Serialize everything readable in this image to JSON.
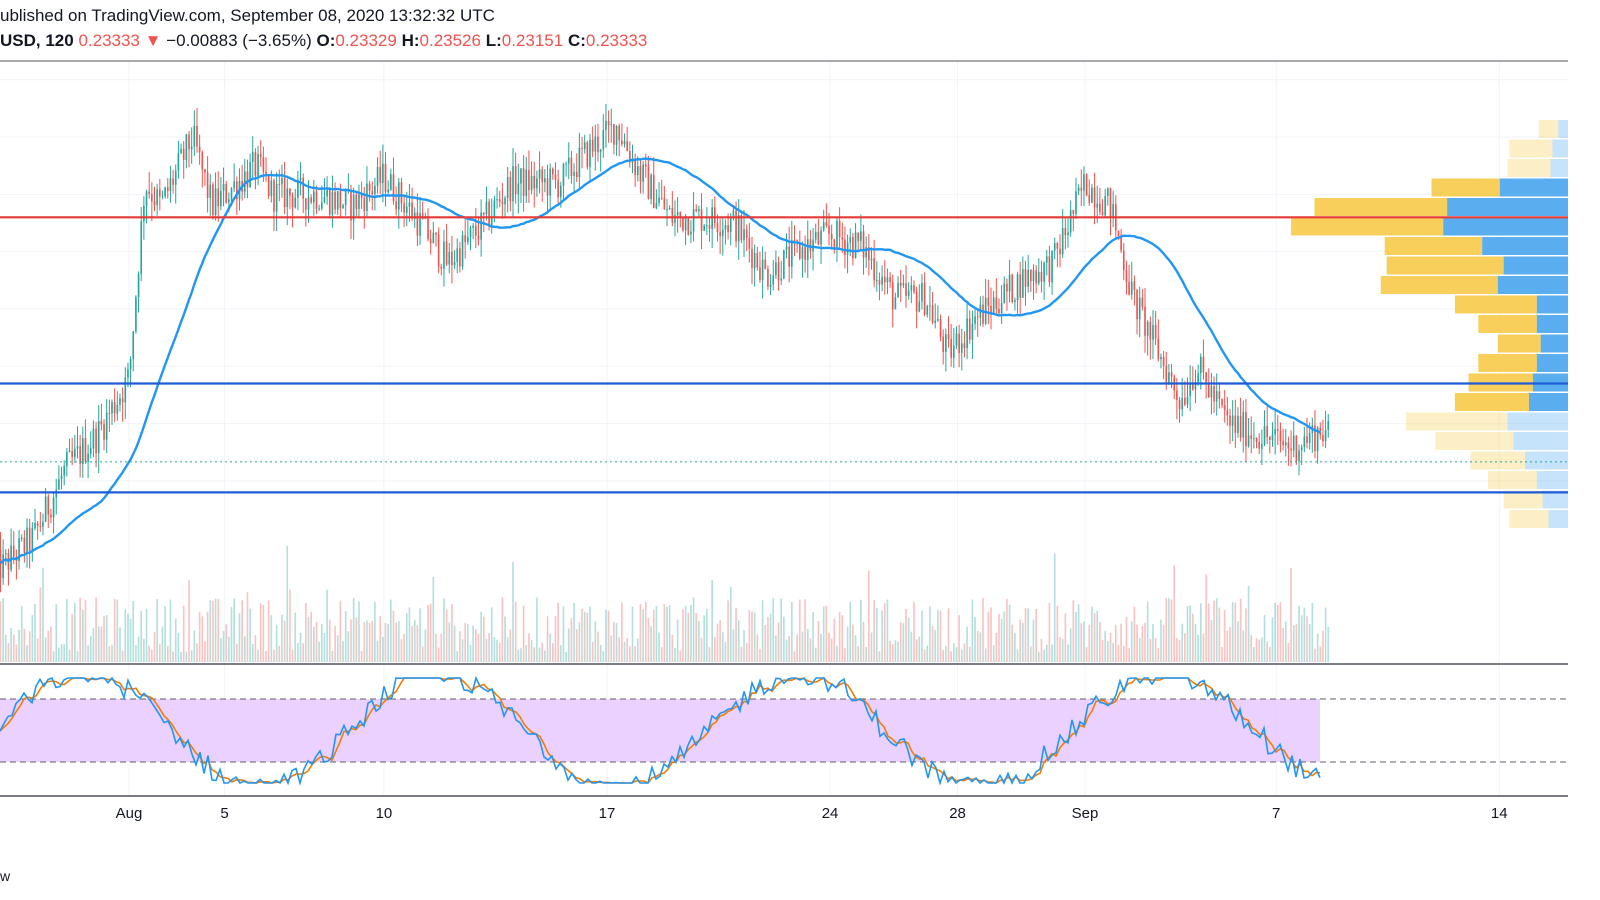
{
  "header": {
    "published": "ublished on TradingView.com, September 08, 2020 13:32:32 UTC",
    "symbol": "USD, 120",
    "last": "0.23333",
    "change_arrow": "▼",
    "change": "−0.00883 (−3.65%)",
    "o_label": "O:",
    "o_value": "0.23329",
    "h_label": "H:",
    "h_value": "0.23526",
    "l_label": "L:",
    "l_value": "0.23151",
    "c_label": "C:",
    "c_value": "0.23333"
  },
  "footer": {
    "mark": "w"
  },
  "colors": {
    "up": "#26a69a",
    "down": "#ef5350",
    "ma": "#2196f3",
    "resistance": "#e53935",
    "support": "#1e5bd6",
    "vp_up": "#5aaef0",
    "vp_down": "#f7cf5a",
    "stoch_k": "#2196f3",
    "stoch_d": "#f57c00",
    "stoch_band": "#e7c9ff"
  },
  "chart_data": {
    "type": "candlestick",
    "interval": "120",
    "last_price": 0.23333,
    "x_ticks": [
      {
        "label": "Aug",
        "day": 2
      },
      {
        "label": "5",
        "day": 5
      },
      {
        "label": "10",
        "day": 10
      },
      {
        "label": "17",
        "day": 17
      },
      {
        "label": "24",
        "day": 24
      },
      {
        "label": "28",
        "day": 28
      },
      {
        "label": "Sep",
        "day": 32
      },
      {
        "label": "7",
        "day": 38
      },
      {
        "label": "14",
        "day": 45
      }
    ],
    "price_close_keypoints": [
      [
        -2,
        0.215
      ],
      [
        -1,
        0.22
      ],
      [
        0,
        0.232
      ],
      [
        1,
        0.238
      ],
      [
        2,
        0.248
      ],
      [
        2.5,
        0.282
      ],
      [
        3,
        0.278
      ],
      [
        4,
        0.29
      ],
      [
        4.6,
        0.278
      ],
      [
        6,
        0.285
      ],
      [
        6.5,
        0.28
      ],
      [
        8,
        0.28
      ],
      [
        9,
        0.278
      ],
      [
        10,
        0.283
      ],
      [
        11,
        0.276
      ],
      [
        12,
        0.268
      ],
      [
        13,
        0.274
      ],
      [
        14,
        0.282
      ],
      [
        15.5,
        0.282
      ],
      [
        16.5,
        0.288
      ],
      [
        17.3,
        0.292
      ],
      [
        18,
        0.284
      ],
      [
        19,
        0.276
      ],
      [
        20,
        0.276
      ],
      [
        21,
        0.275
      ],
      [
        22,
        0.266
      ],
      [
        23,
        0.27
      ],
      [
        24,
        0.273
      ],
      [
        25,
        0.271
      ],
      [
        26,
        0.262
      ],
      [
        27,
        0.262
      ],
      [
        27.7,
        0.252
      ],
      [
        28.5,
        0.258
      ],
      [
        30,
        0.265
      ],
      [
        31,
        0.268
      ],
      [
        32,
        0.282
      ],
      [
        32.8,
        0.278
      ],
      [
        33.5,
        0.262
      ],
      [
        34,
        0.256
      ],
      [
        35,
        0.244
      ],
      [
        35.5,
        0.25
      ],
      [
        36.5,
        0.24
      ],
      [
        37.5,
        0.238
      ],
      [
        38.5,
        0.236
      ],
      [
        39.5,
        0.239
      ],
      [
        40.1,
        0.2333
      ]
    ],
    "resistance_level": 0.276,
    "support_levels": [
      0.247,
      0.228
    ],
    "volume_profile": {
      "price_buckets_top_to_bottom": 21,
      "up_volume": [
        0.05,
        0.08,
        0.09,
        0.35,
        0.62,
        0.64,
        0.44,
        0.33,
        0.36,
        0.16,
        0.16,
        0.14,
        0.16,
        0.18,
        0.2,
        0.31,
        0.28,
        0.22,
        0.16,
        0.13,
        0.1
      ],
      "down_volume": [
        0.1,
        0.22,
        0.22,
        0.35,
        0.68,
        0.78,
        0.5,
        0.6,
        0.6,
        0.42,
        0.3,
        0.22,
        0.3,
        0.33,
        0.38,
        0.52,
        0.4,
        0.28,
        0.25,
        0.2,
        0.2
      ]
    },
    "stochastic": {
      "upper_band": 80,
      "lower_band": 20
    }
  }
}
